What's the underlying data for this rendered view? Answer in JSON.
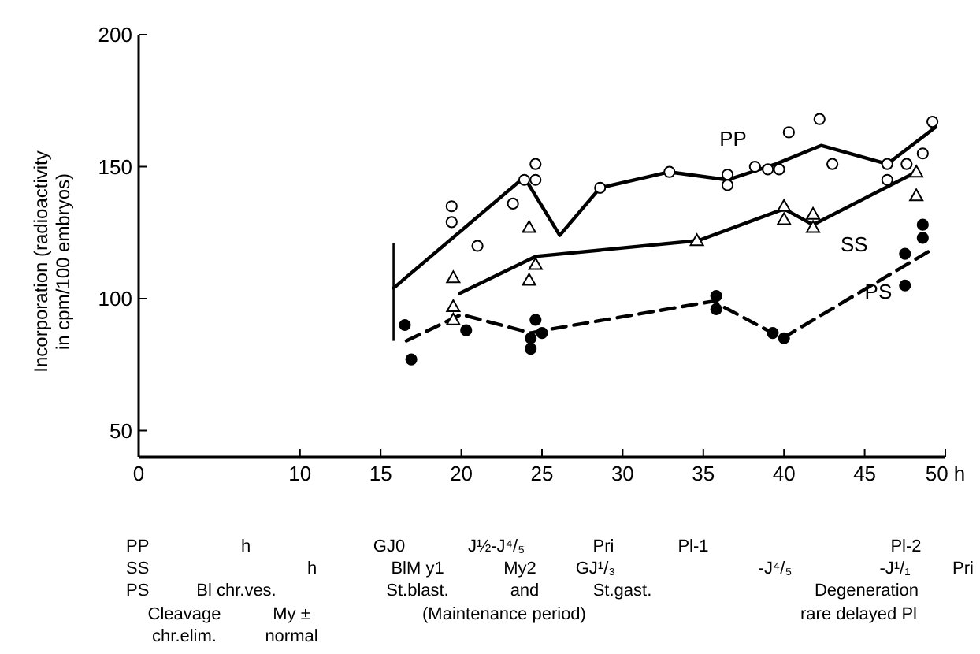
{
  "chart_data": {
    "type": "line",
    "ylabel": "Incorporation (radioactivity in cpm/100 embryos)",
    "xlim": [
      0,
      50
    ],
    "ylim": [
      40,
      200
    ],
    "xticks": [
      0,
      10,
      15,
      20,
      25,
      30,
      35,
      40,
      45,
      {
        "value": 50,
        "label": "50 h"
      }
    ],
    "yticks": [
      50,
      100,
      150,
      200
    ],
    "grid": false,
    "series": [
      {
        "name": "PP",
        "line_style": "solid",
        "color": "#000000",
        "x": [
          15.8,
          23.9,
          26.1,
          28.6,
          32.9,
          36.5,
          39.5,
          42.3,
          46.4,
          49.4
        ],
        "values": [
          104,
          146,
          124,
          142,
          148,
          145,
          151,
          158,
          151,
          165
        ],
        "errors": [
          [
            84,
            121
          ],
          null,
          null,
          null,
          null,
          null,
          null,
          null,
          null,
          null
        ]
      },
      {
        "name": "SS",
        "line_style": "solid",
        "color": "#000000",
        "x": [
          19.9,
          24.6,
          34.7,
          40,
          41.8,
          48.2
        ],
        "values": [
          102,
          116,
          122,
          134,
          128,
          148
        ]
      },
      {
        "name": "PS",
        "line_style": "dashed",
        "color": "#000000",
        "x": [
          16.6,
          20,
          24.3,
          25.1,
          35.6,
          39.9,
          49
        ],
        "values": [
          84,
          94,
          87,
          88,
          99,
          85,
          118
        ]
      },
      {
        "type": "scatter",
        "marker": "circle",
        "color": "#000000",
        "x": [
          19.4,
          19.4,
          21,
          23.2,
          23.9,
          24.6,
          24.6,
          28.6,
          32.9,
          36.5,
          36.5,
          38.2,
          39,
          39.7,
          40.3,
          42.2,
          43,
          46.4,
          46.4,
          47.6,
          48.6,
          49.2
        ],
        "values": [
          135,
          129,
          120,
          136,
          145,
          145,
          151,
          142,
          148,
          147,
          143,
          150,
          149,
          149,
          163,
          168,
          151,
          151,
          145,
          151,
          155,
          167
        ]
      },
      {
        "type": "scatter",
        "marker": "triangle",
        "color": "#000000",
        "x": [
          19.5,
          19.5,
          19.5,
          24.2,
          24.2,
          24.6,
          34.6,
          40,
          40,
          41.8,
          41.8,
          48.2,
          48.2
        ],
        "values": [
          108,
          97,
          92,
          127,
          107,
          113,
          122,
          135,
          130,
          132,
          127,
          148,
          139
        ]
      },
      {
        "type": "scatter",
        "marker": "circle",
        "color": "#000000",
        "x": [
          16.5,
          16.9,
          20.3,
          24.3,
          24.3,
          24.6,
          25,
          35.8,
          35.8,
          39.3,
          40,
          47.5,
          47.5,
          48.6,
          48.6
        ],
        "values": [
          90,
          77,
          88,
          85,
          81,
          92,
          87,
          101,
          96,
          87,
          85,
          117,
          105,
          128,
          123
        ]
      }
    ],
    "annotations": [
      "PP",
      "h",
      "GJ0",
      "J½-J⁴/₅",
      "Pri",
      "Pl-1",
      "Pl-2",
      "SS",
      "h",
      "BlM y1",
      "My2",
      "GJ¹/₃",
      "-J⁴/₅",
      "-J¹/₁",
      "Pri",
      "PS",
      "Bl chr.ves.",
      "St.blast.",
      "and",
      "St.gast.",
      "Degeneration",
      "Cleavage",
      "My ±",
      "(Maintenance period)",
      "rare delayed Pl",
      "chr.elim.",
      "normal"
    ]
  }
}
